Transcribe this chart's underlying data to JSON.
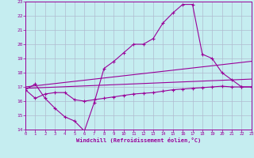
{
  "xlabel": "Windchill (Refroidissement éolien,°C)",
  "xlim": [
    0,
    23
  ],
  "ylim": [
    14,
    23
  ],
  "xticks": [
    0,
    1,
    2,
    3,
    4,
    5,
    6,
    7,
    8,
    9,
    10,
    11,
    12,
    13,
    14,
    15,
    16,
    17,
    18,
    19,
    20,
    21,
    22,
    23
  ],
  "yticks": [
    14,
    15,
    16,
    17,
    18,
    19,
    20,
    21,
    22,
    23
  ],
  "bg_color": "#c5edf0",
  "line_color": "#990099",
  "grid_color": "#b0bbd0",
  "line1_x": [
    0,
    1,
    2,
    3,
    4,
    5,
    6,
    7,
    8,
    9,
    10,
    11,
    12,
    13,
    14,
    15,
    16,
    17,
    18,
    19,
    20,
    21,
    22,
    23
  ],
  "line1_y": [
    16.8,
    17.2,
    16.2,
    15.5,
    14.9,
    14.6,
    13.9,
    15.9,
    18.3,
    18.8,
    19.4,
    20.0,
    20.0,
    20.4,
    21.5,
    22.2,
    22.8,
    22.8,
    19.3,
    19.0,
    18.0,
    17.5,
    17.0,
    17.0
  ],
  "line2_x": [
    0,
    1,
    2,
    3,
    4,
    5,
    6,
    7,
    8,
    9,
    10,
    11,
    12,
    13,
    14,
    15,
    16,
    17,
    18,
    19,
    20,
    21,
    22,
    23
  ],
  "line2_y": [
    16.8,
    16.2,
    16.5,
    16.6,
    16.6,
    16.1,
    16.0,
    16.1,
    16.2,
    16.3,
    16.4,
    16.5,
    16.55,
    16.6,
    16.7,
    16.8,
    16.85,
    16.9,
    16.95,
    17.0,
    17.05,
    17.0,
    17.0,
    17.0
  ],
  "trend1_x": [
    0,
    23
  ],
  "trend1_y": [
    17.0,
    18.8
  ],
  "trend2_x": [
    0,
    23
  ],
  "trend2_y": [
    16.9,
    17.55
  ]
}
